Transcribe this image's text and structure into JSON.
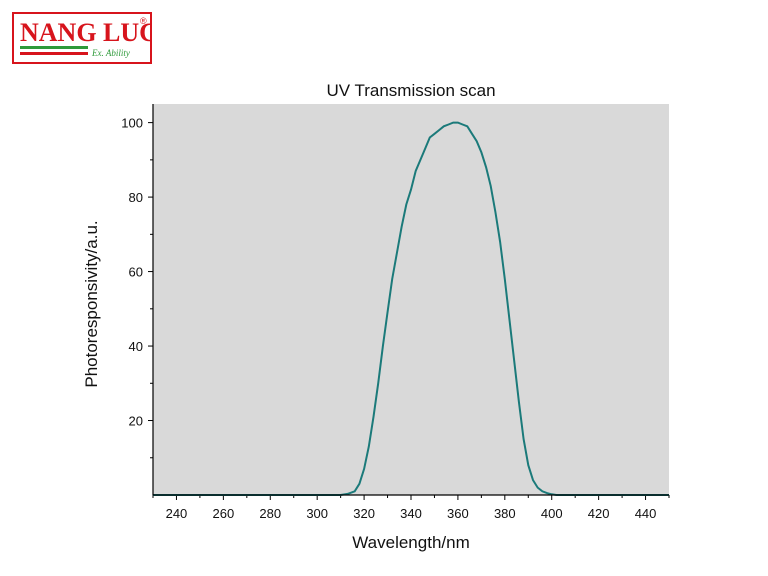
{
  "logo": {
    "text": "NANG LUC",
    "sub": "Ex. Ability",
    "mark": "®",
    "colors": {
      "red": "#d7141c",
      "green": "#2e9a3a"
    }
  },
  "chart_data": {
    "type": "line",
    "title": "UV Transmission scan",
    "xlabel": "Wavelength/nm",
    "ylabel": "Photoresponsivity/a.u.",
    "xlim": [
      230,
      450
    ],
    "ylim": [
      0,
      105
    ],
    "x_ticks": [
      240,
      260,
      280,
      300,
      320,
      340,
      360,
      380,
      400,
      420,
      440
    ],
    "y_ticks": [
      20,
      40,
      60,
      80,
      100
    ],
    "grid": false,
    "plot_background": "#d9d9d9",
    "line_color": "#1b7a7a",
    "series": [
      {
        "x": [
          230,
          300,
          310,
          313,
          316,
          318,
          320,
          322,
          324,
          326,
          328,
          330,
          332,
          334,
          336,
          338,
          340,
          342,
          344,
          346,
          348,
          350,
          352,
          354,
          356,
          358,
          360,
          362,
          364,
          366,
          368,
          370,
          372,
          374,
          376,
          378,
          380,
          382,
          384,
          386,
          388,
          390,
          392,
          394,
          396,
          398,
          400,
          402,
          405,
          410,
          450
        ],
        "values": [
          0,
          0,
          0,
          0.3,
          1,
          3,
          7,
          13,
          21,
          30,
          40,
          49,
          58,
          65,
          72,
          78,
          82,
          87,
          90,
          93,
          96,
          97,
          98,
          99,
          99.5,
          100,
          100,
          99.5,
          99,
          97,
          95,
          92,
          88,
          83,
          76,
          68,
          58,
          47,
          36,
          25,
          15,
          8,
          4,
          2,
          1,
          0.5,
          0.2,
          0,
          0,
          0,
          0
        ]
      }
    ]
  }
}
